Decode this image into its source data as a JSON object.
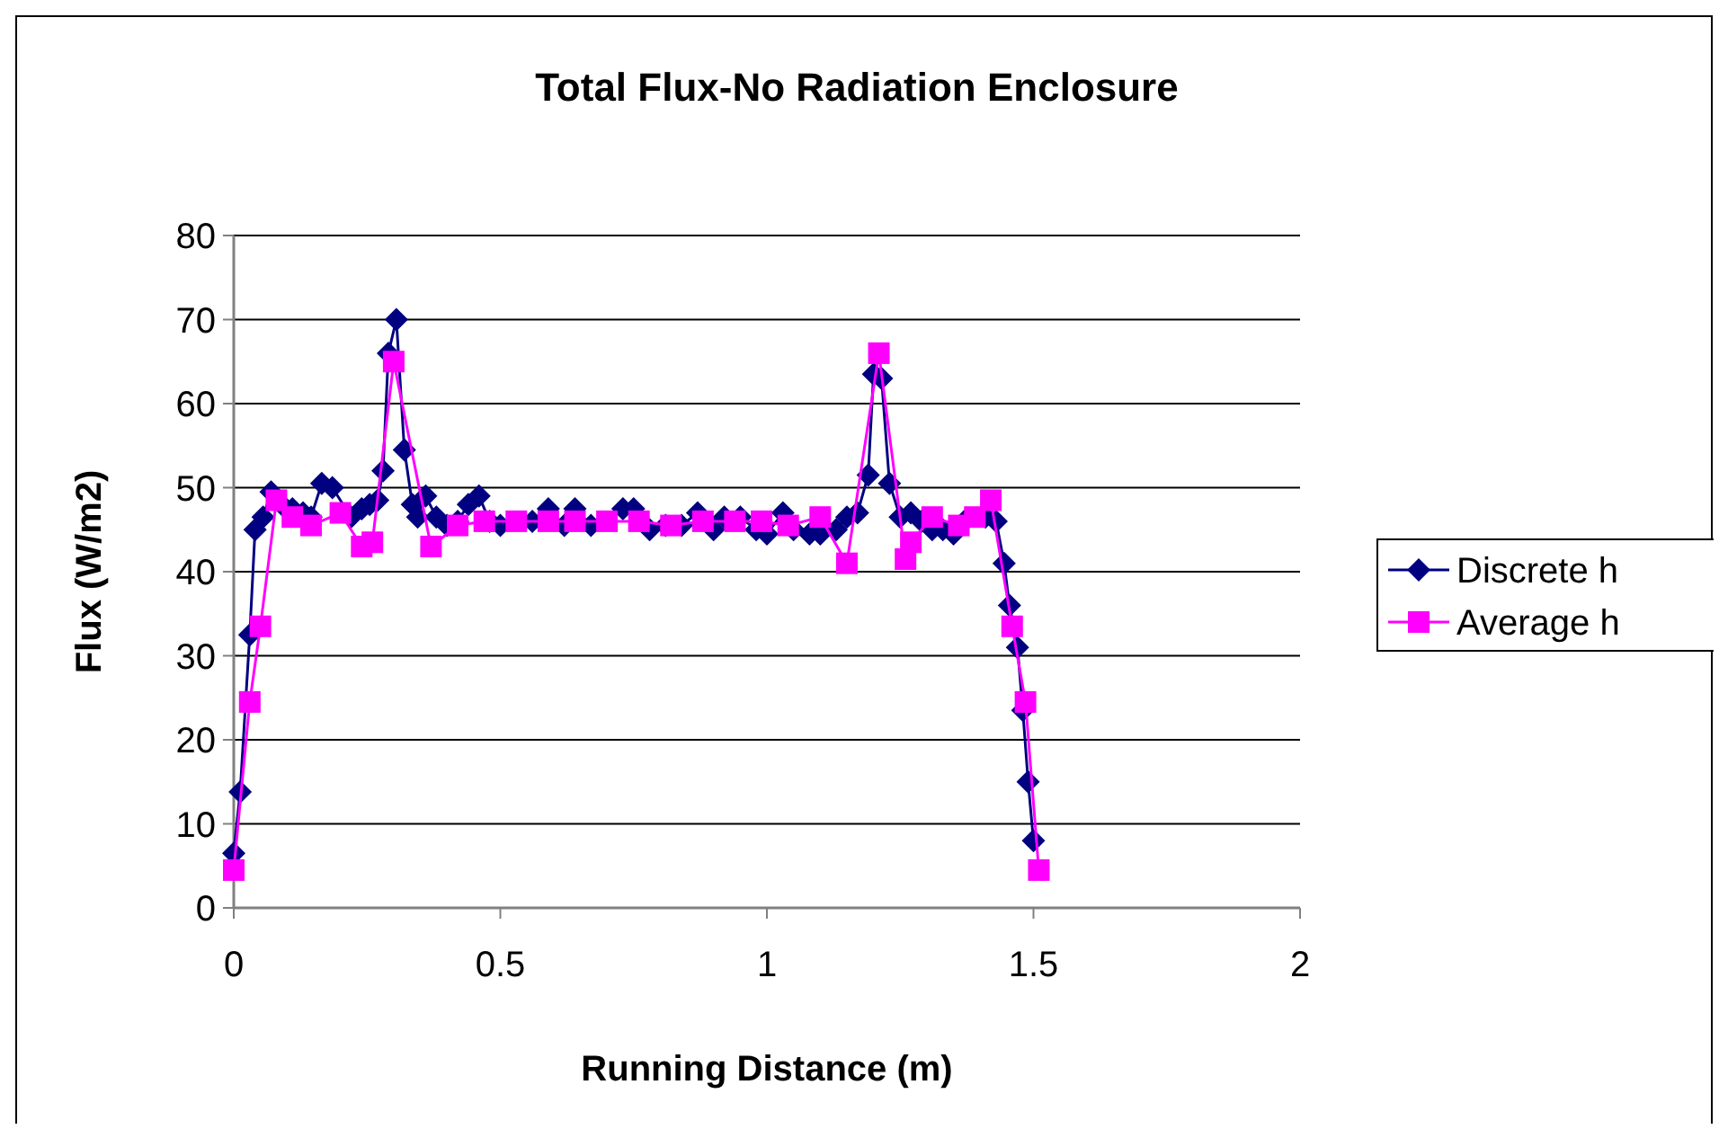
{
  "chart_data": {
    "type": "line",
    "title": "Total Flux-No Radiation Enclosure",
    "xlabel": "Running Distance (m)",
    "ylabel": "Flux (W/m2)",
    "xlim": [
      0,
      2
    ],
    "xticks": [
      0,
      0.5,
      1,
      1.5,
      2
    ],
    "ylim": [
      0,
      80
    ],
    "yticks": [
      0,
      10,
      20,
      30,
      40,
      50,
      60,
      70,
      80
    ],
    "grid": "y",
    "legend": "right",
    "line_style": "solid",
    "series": [
      {
        "name": "Discrete h",
        "color": "#000080",
        "marker": "diamond",
        "x": [
          0,
          0.012,
          0.03,
          0.04,
          0.055,
          0.07,
          0.09,
          0.11,
          0.13,
          0.145,
          0.165,
          0.185,
          0.2,
          0.22,
          0.24,
          0.255,
          0.27,
          0.28,
          0.29,
          0.305,
          0.32,
          0.335,
          0.345,
          0.36,
          0.38,
          0.4,
          0.42,
          0.44,
          0.46,
          0.48,
          0.5,
          0.53,
          0.56,
          0.59,
          0.62,
          0.64,
          0.67,
          0.7,
          0.73,
          0.75,
          0.78,
          0.81,
          0.84,
          0.87,
          0.9,
          0.92,
          0.95,
          0.98,
          1.0,
          1.03,
          1.05,
          1.08,
          1.1,
          1.13,
          1.15,
          1.17,
          1.19,
          1.2,
          1.215,
          1.23,
          1.25,
          1.27,
          1.29,
          1.31,
          1.33,
          1.35,
          1.37,
          1.39,
          1.41,
          1.43,
          1.445,
          1.455,
          1.47,
          1.48,
          1.49,
          1.5
        ],
        "values": [
          6.5,
          13.8,
          32.5,
          45,
          46.5,
          49.5,
          48,
          47.5,
          47,
          46.5,
          50.5,
          50,
          null,
          46.5,
          47.5,
          48,
          48.5,
          52,
          66,
          70,
          54.5,
          48,
          46.5,
          49,
          46.5,
          45.5,
          46,
          48,
          49,
          46,
          45.5,
          null,
          46,
          47.5,
          45.5,
          47.5,
          45.5,
          null,
          47.5,
          47.5,
          45,
          45.5,
          45.5,
          47,
          45,
          46.5,
          46.5,
          45,
          44.5,
          47,
          45,
          44.5,
          44.5,
          45,
          46.5,
          47,
          51.5,
          63.5,
          63,
          50.5,
          46.5,
          47,
          46,
          45,
          45,
          44.5,
          46,
          null,
          46.5,
          46,
          41,
          36,
          31,
          23.5,
          15,
          8
        ]
      },
      {
        "name": "Average h",
        "color": "#ff00ff",
        "marker": "square",
        "x": [
          0,
          0.03,
          0.05,
          0.08,
          0.11,
          0.145,
          0.2,
          0.24,
          0.26,
          0.3,
          0.37,
          0.42,
          0.47,
          0.53,
          0.59,
          0.64,
          0.7,
          0.76,
          0.82,
          0.88,
          0.94,
          0.99,
          1.04,
          1.1,
          1.15,
          1.21,
          1.26,
          1.27,
          1.31,
          1.36,
          1.39,
          1.42,
          1.46,
          1.485,
          1.51
        ],
        "values": [
          4.5,
          24.5,
          33.5,
          48.5,
          46.5,
          45.5,
          47,
          43,
          43.5,
          65,
          43,
          45.5,
          46,
          46,
          46,
          46,
          46,
          46,
          45.5,
          46,
          46,
          46,
          45.5,
          46.5,
          41,
          66,
          41.5,
          43.5,
          46.5,
          45.5,
          46.5,
          48.5,
          33.5,
          24.5,
          4.5
        ]
      }
    ]
  }
}
